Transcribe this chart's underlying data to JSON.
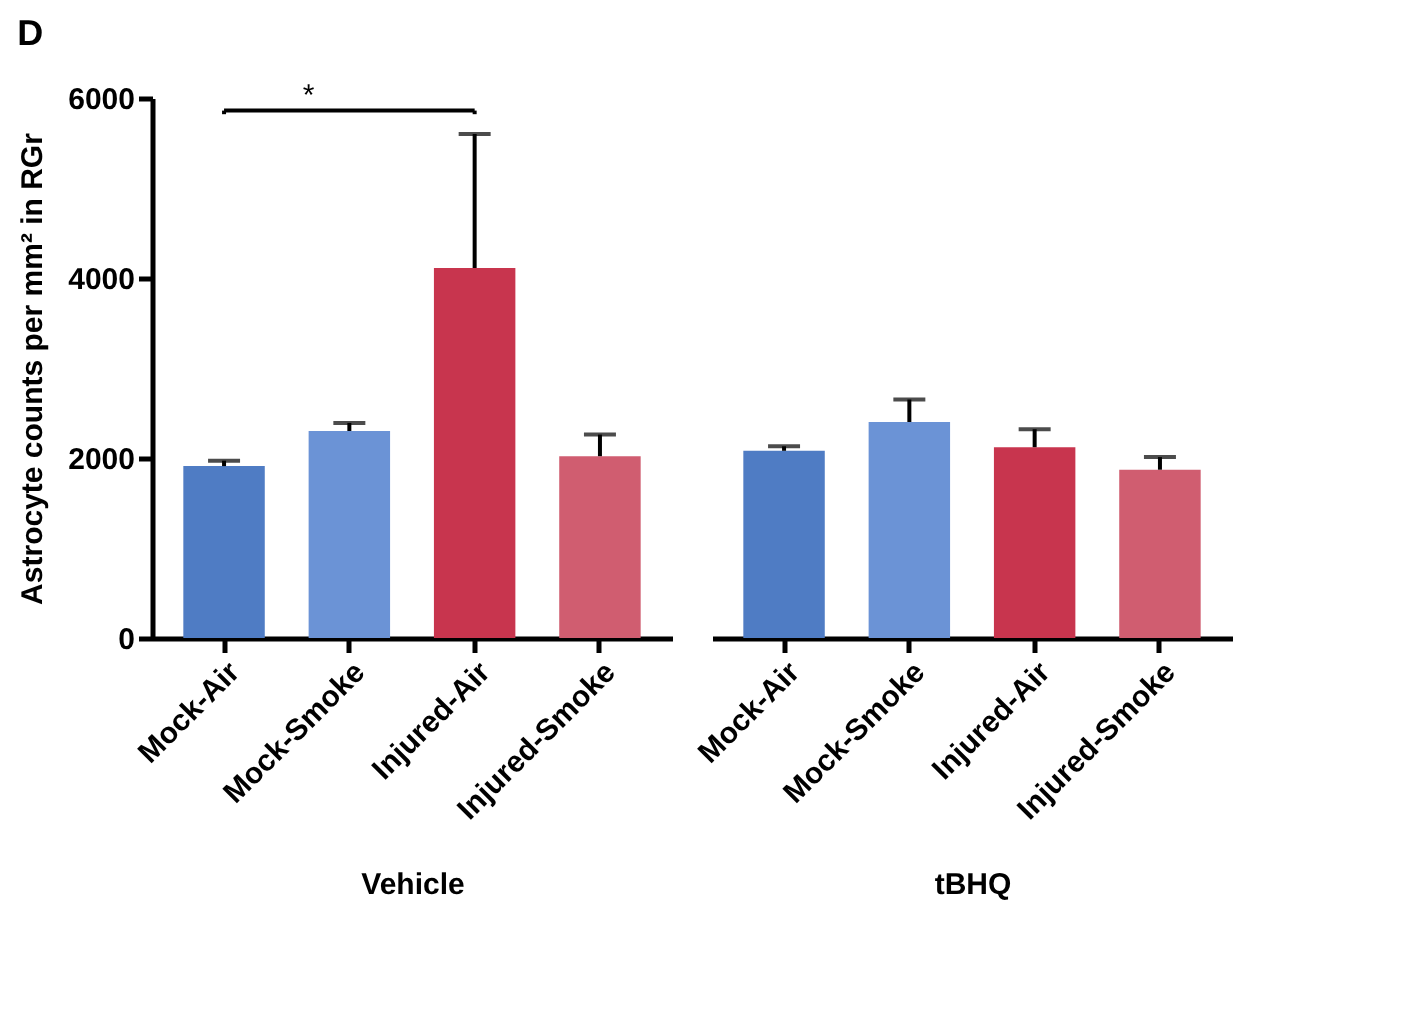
{
  "chart_data": [
    {
      "type": "bar",
      "title": "D",
      "xlabel": "Vehicle",
      "ylabel": "Astrocyte counts per mm² in RGr",
      "categories": [
        "Mock-Air",
        "Mock-Smoke",
        "Injured-Air",
        "Injured-Smoke"
      ],
      "values": [
        1910,
        2300,
        4110,
        2020
      ],
      "errors": [
        [
          1910,
          1970
        ],
        [
          2300,
          2390
        ],
        [
          4110,
          5600
        ],
        [
          2020,
          2260
        ]
      ],
      "colors": [
        "#4f7cc4",
        "#6b93d6",
        "#c8354e",
        "#d05d70"
      ],
      "ylim": [
        0,
        6000
      ],
      "yticks": [
        0,
        2000,
        4000,
        6000
      ],
      "annotations": [
        "*"
      ]
    },
    {
      "type": "bar",
      "xlabel": "tBHQ",
      "categories": [
        "Mock-Air",
        "Mock-Smoke",
        "Injured-Air",
        "Injured-Smoke"
      ],
      "values": [
        2080,
        2400,
        2120,
        1870
      ],
      "errors": [
        [
          2080,
          2130
        ],
        [
          2400,
          2650
        ],
        [
          2120,
          2320
        ],
        [
          1870,
          2010
        ]
      ],
      "colors": [
        "#4f7cc4",
        "#6b93d6",
        "#c8354e",
        "#d05d70"
      ],
      "ylim": [
        0,
        6000
      ],
      "tick_labels": "x"
    }
  ]
}
